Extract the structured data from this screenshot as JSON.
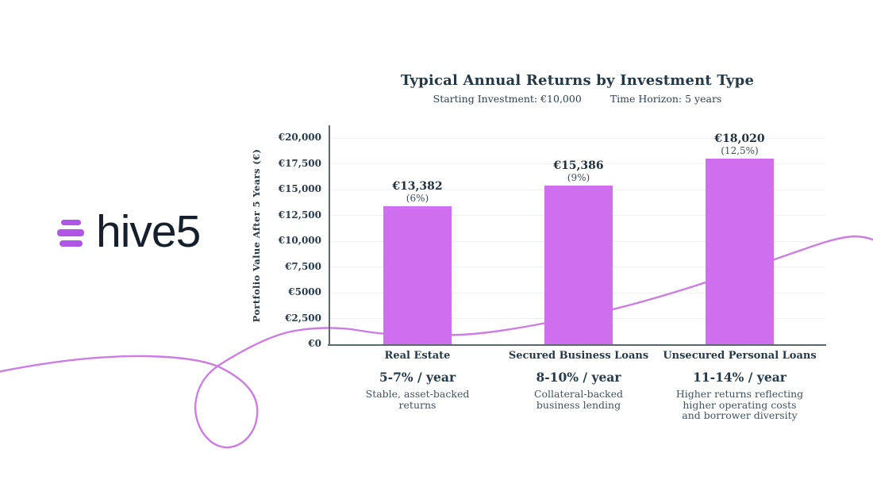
{
  "logo": {
    "text": "hive5",
    "icon": "hive-bars-icon",
    "icon_color": "#b155e6",
    "text_color": "#15202c"
  },
  "chart_data": {
    "type": "bar",
    "title": "Typical Annual Returns by Investment Type",
    "subtitle_left": "Starting Investment: €10,000",
    "subtitle_right": "Time Horizon: 5 years",
    "ylabel": "Portfolio Value After 5 Years (€)",
    "ylim": [
      0,
      20000
    ],
    "ytick_interval": 2500,
    "ytick_labels": [
      "€0",
      "€2,500",
      "€5000",
      "€7,500",
      "€10,000",
      "€12,500",
      "€15,000",
      "€17,500",
      "€20,000"
    ],
    "grid": "horizontal-light",
    "legend": "none",
    "categories": [
      "Real Estate",
      "Secured Business Loans",
      "Unsecured Personal Loans"
    ],
    "values": [
      13382,
      15386,
      18020
    ],
    "value_labels": [
      "€13,382",
      "€15,386",
      "€18,020"
    ],
    "pct_labels": [
      "(6%)",
      "(9%)",
      "(12,5%)"
    ],
    "annual_rates": [
      "5-7% / year",
      "8-10% / year",
      "11-14% / year"
    ],
    "descriptions": [
      [
        "Stable, asset-backed",
        "returns"
      ],
      [
        "Collateral-backed",
        "business lending"
      ],
      [
        "Higher returns reflecting",
        "higher operating costs",
        "and borrower diversity"
      ]
    ],
    "colors": {
      "bar": "#cf6ff0",
      "decorative_curve": "#cd7ce4",
      "axis": "#5d676e",
      "text_dark": "#243845"
    }
  }
}
